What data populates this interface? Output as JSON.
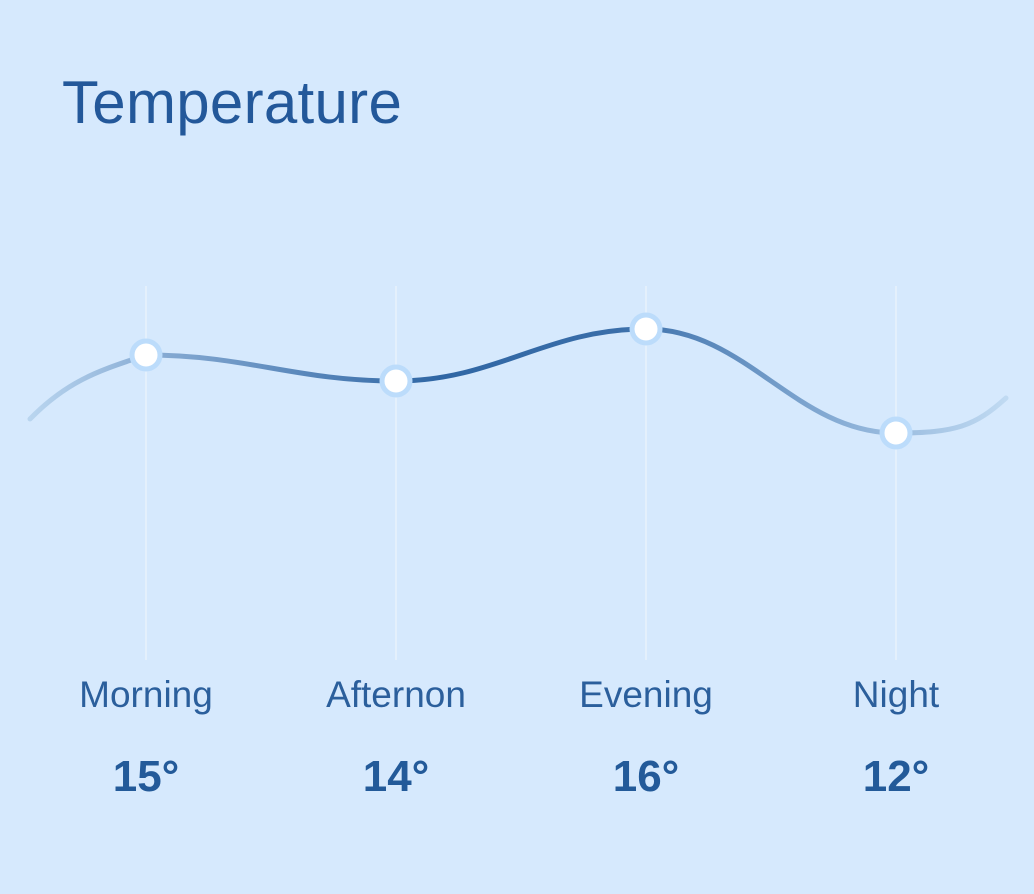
{
  "title": "Temperature",
  "colors": {
    "background": "#d6e9fd",
    "line_strong": "#2e65a3",
    "line_fade": "#b7d4ef",
    "grid": "#e4f0fc",
    "point_fill": "#ffffff",
    "point_ring": "#bcdcfb",
    "text": "#23589a"
  },
  "chart_data": {
    "type": "line",
    "title": "Temperature",
    "categories": [
      "Morning",
      "Afternon",
      "Evening",
      "Night"
    ],
    "values": [
      15,
      14,
      16,
      12
    ],
    "value_labels": [
      "15°",
      "14°",
      "16°",
      "12°"
    ],
    "unit": "°",
    "grid": true,
    "smooth": true
  }
}
